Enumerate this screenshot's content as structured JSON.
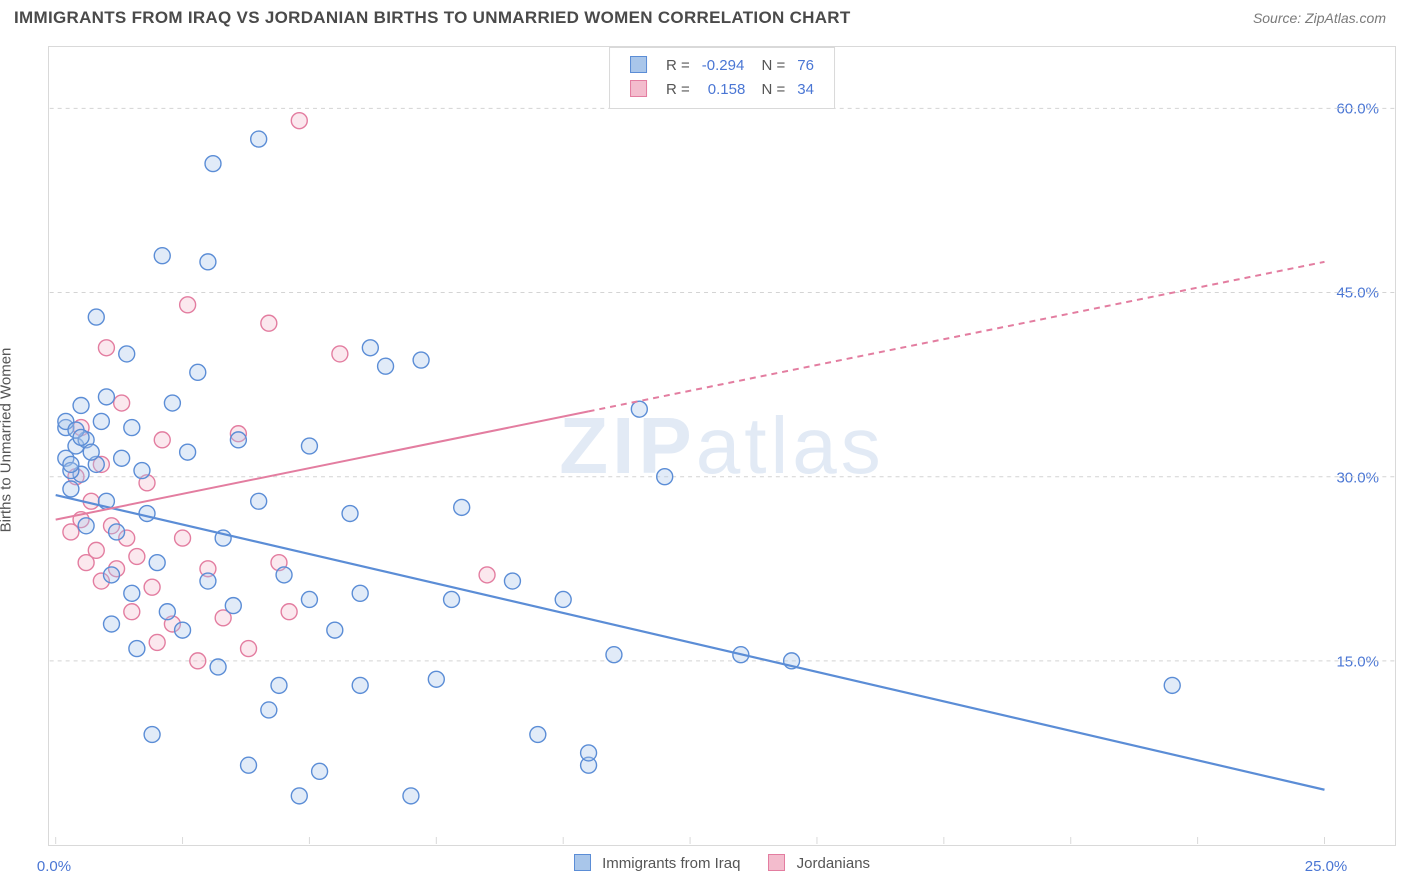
{
  "header": {
    "title": "IMMIGRANTS FROM IRAQ VS JORDANIAN BIRTHS TO UNMARRIED WOMEN CORRELATION CHART",
    "source": "Source: ZipAtlas.com"
  },
  "watermark": {
    "bold": "ZIP",
    "light": "atlas"
  },
  "chart": {
    "type": "scatter",
    "ylabel": "Births to Unmarried Women",
    "xlim": [
      0,
      25
    ],
    "ylim": [
      0,
      65
    ],
    "xticks": [
      {
        "v": 0,
        "label": "0.0%"
      },
      {
        "v": 25,
        "label": "25.0%"
      }
    ],
    "yticks": [
      {
        "v": 15,
        "label": "15.0%"
      },
      {
        "v": 30,
        "label": "30.0%"
      },
      {
        "v": 45,
        "label": "45.0%"
      },
      {
        "v": 60,
        "label": "60.0%"
      }
    ],
    "grid_color": "#d4d4d4",
    "background_color": "#ffffff",
    "marker_radius": 8,
    "marker_fill_opacity": 0.35,
    "marker_stroke_width": 1.4,
    "series": [
      {
        "key": "iraq",
        "name": "Immigrants from Iraq",
        "color_stroke": "#5b8dd6",
        "color_fill": "#a9c6ea",
        "r_value": "-0.294",
        "n_value": "76",
        "trend": {
          "x1": 0,
          "y1": 28.5,
          "x2": 25,
          "y2": 4.5,
          "solid_until_x": 25,
          "stroke_width": 2.2
        },
        "points": [
          [
            0.2,
            31.5
          ],
          [
            0.2,
            34.0
          ],
          [
            0.3,
            29.0
          ],
          [
            0.4,
            32.5
          ],
          [
            0.5,
            35.8
          ],
          [
            0.5,
            30.2
          ],
          [
            0.6,
            33.0
          ],
          [
            0.6,
            26.0
          ],
          [
            0.8,
            31.0
          ],
          [
            0.8,
            43.0
          ],
          [
            0.9,
            34.5
          ],
          [
            1.0,
            36.5
          ],
          [
            1.0,
            28.0
          ],
          [
            1.1,
            22.0
          ],
          [
            1.2,
            25.5
          ],
          [
            1.3,
            31.5
          ],
          [
            1.4,
            40.0
          ],
          [
            1.5,
            34.0
          ],
          [
            1.5,
            20.5
          ],
          [
            1.7,
            30.5
          ],
          [
            1.8,
            27.0
          ],
          [
            1.9,
            9.0
          ],
          [
            2.0,
            23.0
          ],
          [
            2.1,
            48.0
          ],
          [
            2.2,
            19.0
          ],
          [
            2.3,
            36.0
          ],
          [
            2.5,
            17.5
          ],
          [
            2.6,
            32.0
          ],
          [
            2.8,
            38.5
          ],
          [
            3.0,
            21.5
          ],
          [
            3.0,
            47.5
          ],
          [
            3.1,
            55.5
          ],
          [
            3.2,
            14.5
          ],
          [
            3.3,
            25.0
          ],
          [
            3.5,
            19.5
          ],
          [
            3.6,
            33.0
          ],
          [
            3.8,
            6.5
          ],
          [
            4.0,
            28.0
          ],
          [
            4.0,
            57.5
          ],
          [
            4.2,
            11.0
          ],
          [
            4.4,
            13.0
          ],
          [
            4.5,
            22.0
          ],
          [
            4.8,
            4.0
          ],
          [
            5.0,
            32.5
          ],
          [
            5.0,
            20.0
          ],
          [
            5.2,
            6.0
          ],
          [
            5.5,
            17.5
          ],
          [
            5.8,
            27.0
          ],
          [
            6.0,
            13.0
          ],
          [
            6.0,
            20.5
          ],
          [
            6.2,
            40.5
          ],
          [
            6.5,
            39.0
          ],
          [
            7.0,
            4.0
          ],
          [
            7.2,
            39.5
          ],
          [
            7.5,
            13.5
          ],
          [
            7.8,
            20.0
          ],
          [
            8.0,
            27.5
          ],
          [
            9.0,
            21.5
          ],
          [
            9.5,
            9.0
          ],
          [
            10.0,
            20.0
          ],
          [
            10.5,
            6.5
          ],
          [
            10.5,
            7.5
          ],
          [
            11.0,
            15.5
          ],
          [
            11.5,
            35.5
          ],
          [
            12.0,
            30.0
          ],
          [
            13.5,
            15.5
          ],
          [
            14.5,
            15.0
          ],
          [
            22.0,
            13.0
          ],
          [
            0.2,
            34.5
          ],
          [
            0.4,
            33.8
          ],
          [
            0.3,
            30.5
          ],
          [
            0.3,
            31.0
          ],
          [
            0.5,
            33.2
          ],
          [
            0.7,
            32.0
          ],
          [
            1.1,
            18.0
          ],
          [
            1.6,
            16.0
          ]
        ]
      },
      {
        "key": "jordanian",
        "name": "Jordanians",
        "color_stroke": "#e37da0",
        "color_fill": "#f3bccd",
        "r_value": "0.158",
        "n_value": "34",
        "trend": {
          "x1": 0,
          "y1": 26.5,
          "x2": 25,
          "y2": 47.5,
          "solid_until_x": 10.5,
          "stroke_width": 2.0,
          "dash": "6,5"
        },
        "points": [
          [
            0.3,
            25.5
          ],
          [
            0.4,
            30.0
          ],
          [
            0.5,
            26.5
          ],
          [
            0.5,
            34.0
          ],
          [
            0.6,
            23.0
          ],
          [
            0.7,
            28.0
          ],
          [
            0.8,
            24.0
          ],
          [
            0.9,
            31.0
          ],
          [
            0.9,
            21.5
          ],
          [
            1.0,
            40.5
          ],
          [
            1.1,
            26.0
          ],
          [
            1.2,
            22.5
          ],
          [
            1.3,
            36.0
          ],
          [
            1.4,
            25.0
          ],
          [
            1.5,
            19.0
          ],
          [
            1.6,
            23.5
          ],
          [
            1.8,
            29.5
          ],
          [
            1.9,
            21.0
          ],
          [
            2.0,
            16.5
          ],
          [
            2.1,
            33.0
          ],
          [
            2.3,
            18.0
          ],
          [
            2.5,
            25.0
          ],
          [
            2.6,
            44.0
          ],
          [
            2.8,
            15.0
          ],
          [
            3.0,
            22.5
          ],
          [
            3.3,
            18.5
          ],
          [
            3.6,
            33.5
          ],
          [
            3.8,
            16.0
          ],
          [
            4.2,
            42.5
          ],
          [
            4.4,
            23.0
          ],
          [
            4.6,
            19.0
          ],
          [
            4.8,
            59.0
          ],
          [
            5.6,
            40.0
          ],
          [
            8.5,
            22.0
          ]
        ]
      }
    ],
    "bottom_legend": [
      {
        "swatch_fill": "#a9c6ea",
        "swatch_stroke": "#5b8dd6",
        "label": "Immigrants from Iraq"
      },
      {
        "swatch_fill": "#f3bccd",
        "swatch_stroke": "#e37da0",
        "label": "Jordanians"
      }
    ]
  }
}
